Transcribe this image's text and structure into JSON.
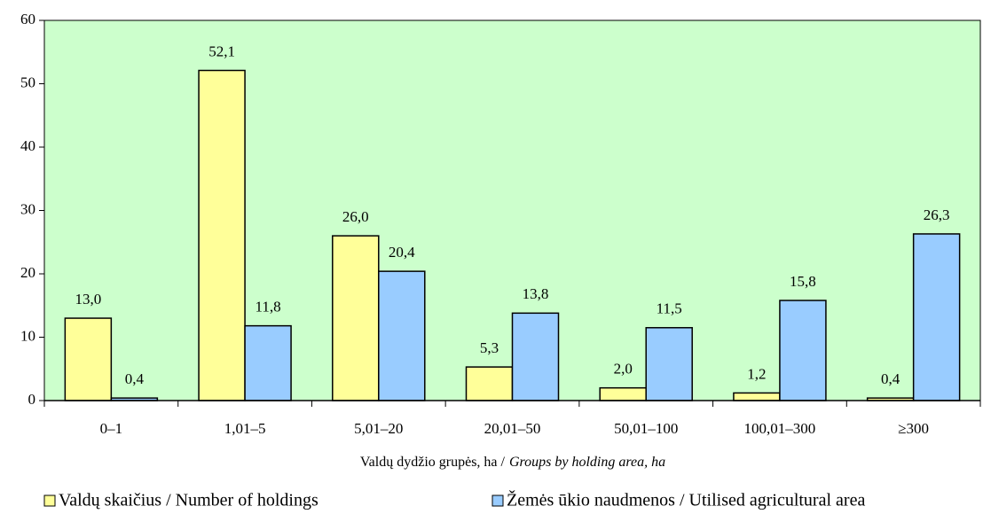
{
  "chart_data": {
    "type": "bar",
    "x_label": "Valdų dydžio grupės, ha /",
    "x_label_en": "Groups by holding area, ha",
    "categories": [
      "0–1",
      "1,01–5",
      "5,01–20",
      "20,01–50",
      "50,01–100",
      "100,01–300",
      "≥300"
    ],
    "series": [
      {
        "name": "Valdų skaičius / Number of holdings",
        "color": "#ffff99",
        "values": [
          13.0,
          52.1,
          26.0,
          5.3,
          2.0,
          1.2,
          0.4
        ],
        "value_labels": [
          "13,0",
          "52,1",
          "26,0",
          "5,3",
          "2,0",
          "1,2",
          "0,4"
        ]
      },
      {
        "name": "Žemės ūkio naudmenos / Utilised agricultural area",
        "color": "#99ccff",
        "values": [
          0.4,
          11.8,
          20.4,
          13.8,
          11.5,
          15.8,
          26.3
        ],
        "value_labels": [
          "0,4",
          "11,8",
          "20,4",
          "13,8",
          "11,5",
          "15,8",
          "26,3"
        ]
      }
    ],
    "ylim": [
      0,
      60
    ],
    "yticks": [
      0,
      10,
      20,
      30,
      40,
      50,
      60
    ],
    "plot_background": "#ccffcc"
  }
}
